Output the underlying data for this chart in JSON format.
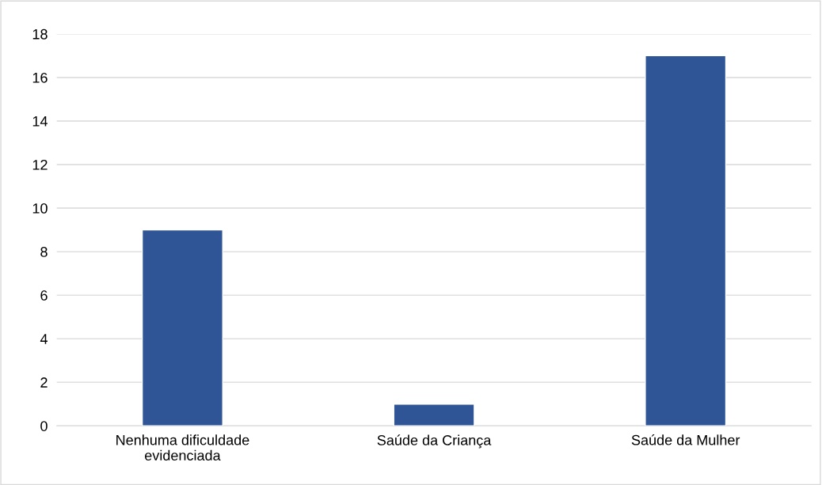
{
  "chart_data": {
    "type": "bar",
    "categories": [
      "Nenhuma dificuldade\nevidenciada",
      "Saúde da Criança",
      "Saúde da Mulher"
    ],
    "values": [
      9,
      1,
      17
    ],
    "color": "#2f5597",
    "ylim": [
      0,
      18
    ],
    "yticks": [
      0,
      2,
      4,
      6,
      8,
      10,
      12,
      14,
      16,
      18
    ],
    "grid": "y",
    "legend": false
  }
}
